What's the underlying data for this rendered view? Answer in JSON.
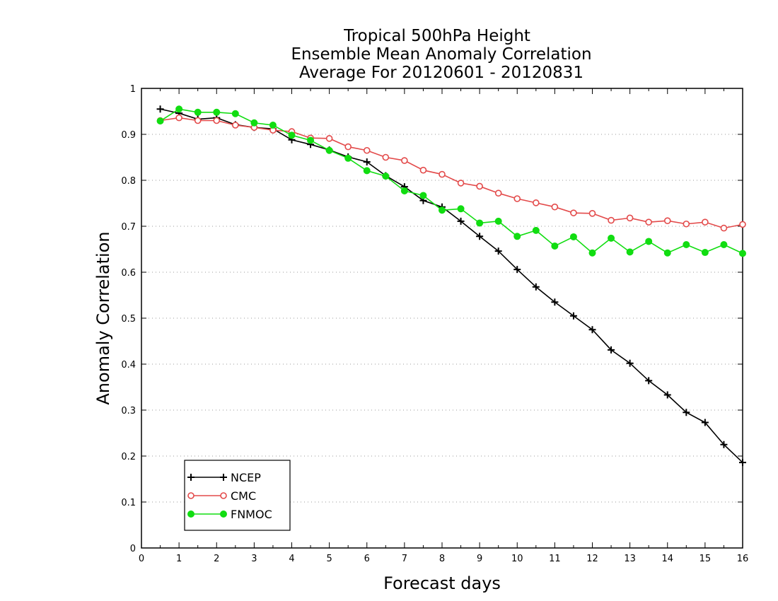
{
  "chart_data": {
    "type": "line",
    "title": [
      "Tropical 500hPa Height",
      "Ensemble Mean Anomaly Correlation",
      "Average For 20120601 - 20120831"
    ],
    "xlabel": "Forecast days",
    "ylabel": "Anomaly Correlation",
    "xlim": [
      0,
      16
    ],
    "ylim": [
      0,
      1
    ],
    "x_ticks": [
      "0",
      "1",
      "2",
      "3",
      "4",
      "5",
      "6",
      "7",
      "8",
      "9",
      "10",
      "11",
      "12",
      "13",
      "14",
      "15",
      "16"
    ],
    "y_ticks": [
      "0",
      "0.1",
      "0.2",
      "0.3",
      "0.4",
      "0.5",
      "0.6",
      "0.7",
      "0.8",
      "0.9",
      "1"
    ],
    "grid": "horizontal dotted",
    "legend_position": "bottom-left",
    "x": [
      0.5,
      1,
      1.5,
      2,
      2.5,
      3,
      3.5,
      4,
      4.5,
      5,
      5.5,
      6,
      6.5,
      7,
      7.5,
      8,
      8.5,
      9,
      9.5,
      10,
      10.5,
      11,
      11.5,
      12,
      12.5,
      13,
      13.5,
      14,
      14.5,
      15,
      15.5,
      16
    ],
    "series": [
      {
        "name": "NCEP",
        "color": "#000000",
        "marker": "plus",
        "values": [
          0.955,
          0.946,
          0.933,
          0.936,
          0.921,
          0.915,
          0.912,
          0.888,
          0.878,
          0.866,
          0.851,
          0.84,
          0.81,
          0.786,
          0.756,
          0.742,
          0.711,
          0.678,
          0.646,
          0.606,
          0.568,
          0.535,
          0.505,
          0.475,
          0.431,
          0.402,
          0.364,
          0.333,
          0.295,
          0.273,
          0.225,
          0.186
        ]
      },
      {
        "name": "CMC",
        "color": "#e34a4a",
        "marker": "open-circle",
        "values": [
          0.93,
          0.936,
          0.93,
          0.93,
          0.92,
          0.915,
          0.909,
          0.906,
          0.892,
          0.891,
          0.873,
          0.865,
          0.85,
          0.843,
          0.822,
          0.813,
          0.794,
          0.787,
          0.772,
          0.76,
          0.751,
          0.742,
          0.729,
          0.728,
          0.713,
          0.718,
          0.709,
          0.712,
          0.705,
          0.709,
          0.696,
          0.704
        ]
      },
      {
        "name": "FNMOC",
        "color": "#11dd11",
        "marker": "filled-circle",
        "values": [
          0.929,
          0.955,
          0.948,
          0.948,
          0.945,
          0.925,
          0.92,
          0.898,
          0.887,
          0.865,
          0.848,
          0.821,
          0.809,
          0.777,
          0.767,
          0.735,
          0.738,
          0.707,
          0.711,
          0.678,
          0.691,
          0.657,
          0.677,
          0.642,
          0.674,
          0.644,
          0.667,
          0.642,
          0.66,
          0.643,
          0.66,
          0.641
        ]
      }
    ]
  }
}
